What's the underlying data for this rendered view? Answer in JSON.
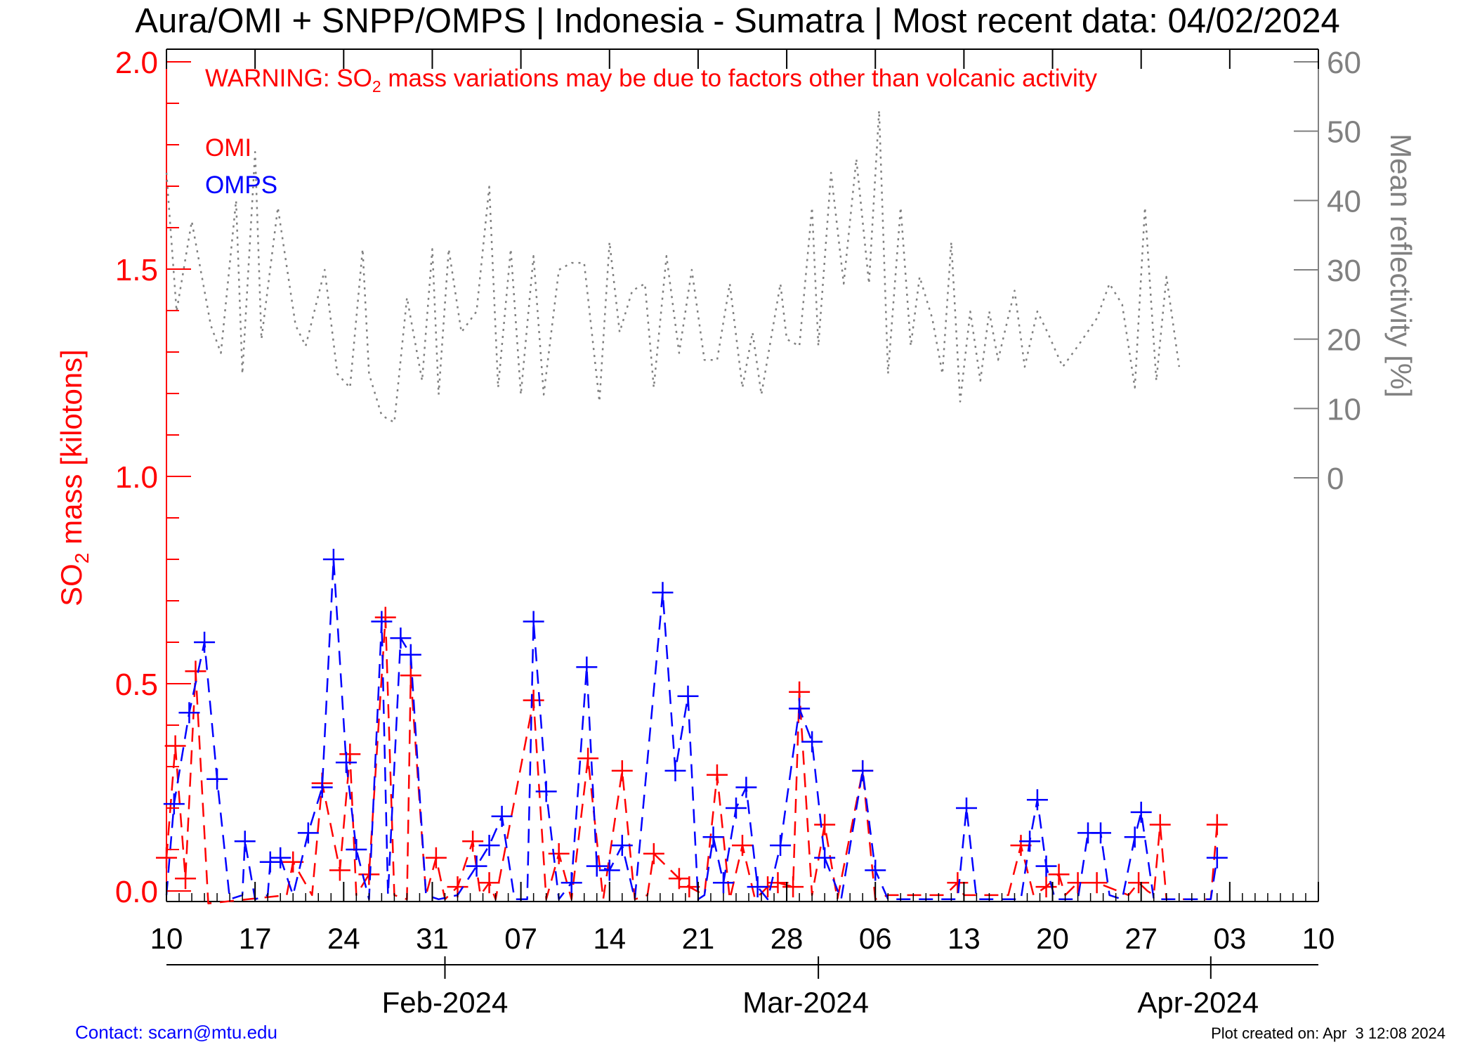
{
  "chart_data": {
    "type": "line",
    "title": "Aura/OMI + SNPP/OMPS | Indonesia - Sumatra | Most recent data: 04/02/2024",
    "warning": {
      "prefix": "WARNING: SO",
      "subscript": "2",
      "suffix": " mass variations may be due to factors other than volcanic activity"
    },
    "ylabel": {
      "prefix": "SO",
      "subscript": "2",
      "suffix": " mass [kilotons]"
    },
    "y2label": "Mean reflectivity [%]",
    "ylim": [
      0,
      2.0
    ],
    "y2lim": [
      0,
      60
    ],
    "xlim_days": [
      0,
      91
    ],
    "yticks": [
      {
        "v": 0.0,
        "label": "0.0"
      },
      {
        "v": 0.5,
        "label": "0.5"
      },
      {
        "v": 1.0,
        "label": "1.0"
      },
      {
        "v": 1.5,
        "label": "1.5"
      },
      {
        "v": 2.0,
        "label": "2.0"
      }
    ],
    "y2ticks": [
      {
        "v": 0,
        "label": "0"
      },
      {
        "v": 10,
        "label": "10"
      },
      {
        "v": 20,
        "label": "20"
      },
      {
        "v": 30,
        "label": "30"
      },
      {
        "v": 40,
        "label": "40"
      },
      {
        "v": 50,
        "label": "50"
      },
      {
        "v": 60,
        "label": "60"
      }
    ],
    "xticks": [
      {
        "d": 0,
        "label": "10"
      },
      {
        "d": 7,
        "label": "17"
      },
      {
        "d": 14,
        "label": "24"
      },
      {
        "d": 21,
        "label": "31"
      },
      {
        "d": 28,
        "label": "07"
      },
      {
        "d": 35,
        "label": "14"
      },
      {
        "d": 42,
        "label": "21"
      },
      {
        "d": 49,
        "label": "28"
      },
      {
        "d": 56,
        "label": "06"
      },
      {
        "d": 63,
        "label": "13"
      },
      {
        "d": 70,
        "label": "20"
      },
      {
        "d": 77,
        "label": "27"
      },
      {
        "d": 84,
        "label": "03"
      },
      {
        "d": 91,
        "label": "10"
      }
    ],
    "months": [
      {
        "d": 22,
        "label": "Feb-2024"
      },
      {
        "d": 50.5,
        "label": "Mar-2024"
      },
      {
        "d": 81.5,
        "label": "Apr-2024"
      }
    ],
    "legend": [
      {
        "name": "OMI",
        "color": "#ff0000"
      },
      {
        "name": "OMPS",
        "color": "#0000ff"
      }
    ],
    "colors": {
      "omi": "#ff0000",
      "omps": "#0000ff",
      "reflectivity": "#808080",
      "axis": "#000000",
      "left_axis": "#ff0000"
    },
    "series": [
      {
        "name": "OMI",
        "color": "#ff0000",
        "style": "dashed",
        "points": [
          [
            0,
            0.08
          ],
          [
            0.7,
            0.35
          ],
          [
            1.5,
            0.03
          ],
          [
            2.3,
            0.53
          ],
          [
            3.3,
            -0.03
          ],
          [
            9.5,
            -0.01
          ],
          [
            10,
            0.07
          ],
          [
            11.5,
            -0.01
          ],
          [
            12.3,
            0.26
          ],
          [
            13.7,
            0.05
          ],
          [
            14.5,
            0.33
          ],
          [
            15,
            -0.01
          ],
          [
            16,
            0.04
          ],
          [
            17.3,
            0.66
          ],
          [
            18,
            -0.01
          ],
          [
            19,
            -0.02
          ],
          [
            19.3,
            0.52
          ],
          [
            20.5,
            -0.01
          ],
          [
            21.3,
            0.08
          ],
          [
            22,
            -0.02
          ],
          [
            23,
            0.01
          ],
          [
            24.2,
            0.12
          ],
          [
            24.8,
            -0.01
          ],
          [
            25.5,
            0.02
          ],
          [
            26,
            -0.02
          ],
          [
            29,
            0.46
          ],
          [
            30,
            -0.02
          ],
          [
            31,
            0.09
          ],
          [
            32,
            -0.02
          ],
          [
            33.3,
            0.32
          ],
          [
            34.5,
            -0.02
          ],
          [
            36,
            0.29
          ],
          [
            37,
            -0.02
          ],
          [
            38,
            -0.01
          ],
          [
            38.5,
            0.09
          ],
          [
            40.5,
            0.03
          ],
          [
            41.3,
            0.01
          ],
          [
            42.5,
            -0.01
          ],
          [
            43.5,
            0.28
          ],
          [
            44.5,
            -0.02
          ],
          [
            45.5,
            0.11
          ],
          [
            46.5,
            -0.02
          ],
          [
            47.5,
            0.01
          ],
          [
            48.3,
            0.02
          ],
          [
            49.5,
            0.01
          ],
          [
            50,
            0.48
          ],
          [
            51,
            -0.01
          ],
          [
            52,
            0.16
          ],
          [
            53,
            -0.02
          ],
          [
            55,
            0.29
          ],
          [
            56,
            -0.02
          ],
          [
            57,
            -0.01
          ],
          [
            61.5,
            -0.01
          ],
          [
            62.5,
            0.02
          ],
          [
            63,
            -0.01
          ],
          [
            66.5,
            -0.01
          ],
          [
            67.5,
            0.11
          ],
          [
            68.5,
            -0.01
          ],
          [
            69.5,
            0.01
          ],
          [
            70.5,
            0.04
          ],
          [
            71,
            -0.01
          ],
          [
            72,
            0.02
          ],
          [
            73.5,
            0.02
          ],
          [
            76,
            -0.01
          ],
          [
            76.8,
            0.02
          ],
          [
            77.5,
            0.0
          ],
          [
            78,
            -0.01
          ],
          [
            78.5,
            0.16
          ],
          [
            79,
            -0.02
          ],
          [
            82.5,
            -0.02
          ],
          [
            83,
            0.16
          ]
        ]
      },
      {
        "name": "OMPS",
        "color": "#0000ff",
        "style": "dashed",
        "points": [
          [
            0,
            -0.01
          ],
          [
            0.6,
            0.21
          ],
          [
            1.8,
            0.43
          ],
          [
            3,
            0.6
          ],
          [
            4,
            0.27
          ],
          [
            5,
            -0.02
          ],
          [
            6,
            -0.01
          ],
          [
            6.2,
            0.12
          ],
          [
            7,
            -0.02
          ],
          [
            8,
            -0.01
          ],
          [
            8.2,
            0.07
          ],
          [
            9,
            0.08
          ],
          [
            10,
            -0.01
          ],
          [
            11.2,
            0.14
          ],
          [
            12.3,
            0.25
          ],
          [
            13.2,
            0.8
          ],
          [
            14.2,
            0.31
          ],
          [
            15,
            0.1
          ],
          [
            16,
            -0.02
          ],
          [
            17.5,
            -0.01
          ],
          [
            17,
            0.65
          ],
          [
            18.5,
            0.61
          ],
          [
            19.3,
            0.57
          ],
          [
            20.5,
            -0.01
          ],
          [
            21.5,
            -0.02
          ],
          [
            23,
            -0.01
          ],
          [
            24.5,
            0.06
          ],
          [
            25.5,
            0.11
          ],
          [
            26.5,
            0.18
          ],
          [
            27.5,
            -0.02
          ],
          [
            28.5,
            -0.02
          ],
          [
            29,
            0.65
          ],
          [
            30,
            0.24
          ],
          [
            31,
            -0.02
          ],
          [
            32,
            0.02
          ],
          [
            33.2,
            0.54
          ],
          [
            34,
            0.06
          ],
          [
            35,
            0.05
          ],
          [
            36,
            0.11
          ],
          [
            37,
            -0.02
          ],
          [
            39.2,
            0.72
          ],
          [
            40.2,
            0.29
          ],
          [
            41.2,
            0.47
          ],
          [
            42,
            -0.02
          ],
          [
            42.5,
            -0.01
          ],
          [
            43.2,
            0.13
          ],
          [
            44,
            0.02
          ],
          [
            45,
            0.2
          ],
          [
            45.8,
            0.25
          ],
          [
            46.7,
            0.01
          ],
          [
            47.5,
            -0.02
          ],
          [
            48.5,
            0.11
          ],
          [
            50,
            0.44
          ],
          [
            51,
            0.36
          ],
          [
            52,
            0.08
          ],
          [
            53.3,
            -0.02
          ],
          [
            55,
            0.29
          ],
          [
            56,
            0.05
          ],
          [
            57,
            -0.02
          ],
          [
            62.5,
            -0.02
          ],
          [
            63.2,
            0.2
          ],
          [
            64,
            -0.02
          ],
          [
            67.5,
            -0.02
          ],
          [
            68.2,
            0.12
          ],
          [
            68.8,
            0.22
          ],
          [
            69.5,
            0.06
          ],
          [
            70.2,
            -0.02
          ],
          [
            72,
            -0.02
          ],
          [
            72.8,
            0.14
          ],
          [
            73.8,
            0.14
          ],
          [
            74.5,
            -0.01
          ],
          [
            75.5,
            -0.02
          ],
          [
            76.5,
            0.13
          ],
          [
            77,
            0.19
          ],
          [
            78,
            -0.02
          ],
          [
            82.5,
            -0.02
          ],
          [
            83,
            0.08
          ]
        ]
      },
      {
        "name": "Mean reflectivity",
        "color": "#808080",
        "style": "dotted",
        "axis": "right",
        "points": [
          [
            0,
            44
          ],
          [
            0.8,
            24
          ],
          [
            2,
            37
          ],
          [
            3.5,
            22
          ],
          [
            4.3,
            18
          ],
          [
            5.5,
            40
          ],
          [
            6,
            15
          ],
          [
            7,
            47
          ],
          [
            7.5,
            20
          ],
          [
            8.8,
            39
          ],
          [
            10.2,
            22
          ],
          [
            11,
            19
          ],
          [
            12.5,
            30
          ],
          [
            13.5,
            15
          ],
          [
            14.5,
            13
          ],
          [
            15.5,
            33
          ],
          [
            16,
            15
          ],
          [
            17,
            9
          ],
          [
            18,
            8
          ],
          [
            19,
            26
          ],
          [
            20.2,
            14
          ],
          [
            21,
            33
          ],
          [
            21.5,
            12
          ],
          [
            22.3,
            33
          ],
          [
            23.3,
            21
          ],
          [
            24.5,
            24
          ],
          [
            25.5,
            42
          ],
          [
            26.2,
            13
          ],
          [
            27.2,
            33
          ],
          [
            28,
            12
          ],
          [
            29,
            32
          ],
          [
            29.8,
            12
          ],
          [
            31,
            30
          ],
          [
            32,
            31
          ],
          [
            33,
            31
          ],
          [
            34.2,
            11
          ],
          [
            35,
            34
          ],
          [
            35.8,
            21
          ],
          [
            36.8,
            27
          ],
          [
            37.8,
            28
          ],
          [
            38.5,
            13
          ],
          [
            39.5,
            32
          ],
          [
            40.5,
            18
          ],
          [
            41.5,
            30
          ],
          [
            42.5,
            17
          ],
          [
            43.5,
            17
          ],
          [
            44.5,
            28
          ],
          [
            45.5,
            13
          ],
          [
            46.3,
            21
          ],
          [
            47,
            12
          ],
          [
            48.5,
            28
          ],
          [
            49,
            20
          ],
          [
            50,
            19
          ],
          [
            51,
            39
          ],
          [
            51.5,
            19
          ],
          [
            52.5,
            44
          ],
          [
            53.5,
            28
          ],
          [
            54.5,
            46
          ],
          [
            55.5,
            28
          ],
          [
            56.3,
            53
          ],
          [
            57,
            15
          ],
          [
            58,
            39
          ],
          [
            58.8,
            19
          ],
          [
            59.5,
            29
          ],
          [
            60.5,
            23
          ],
          [
            61.3,
            15
          ],
          [
            62,
            34
          ],
          [
            62.7,
            11
          ],
          [
            63.5,
            24
          ],
          [
            64.3,
            14
          ],
          [
            65,
            24
          ],
          [
            65.7,
            17
          ],
          [
            67,
            27
          ],
          [
            67.8,
            16
          ],
          [
            68.8,
            24
          ],
          [
            69.6,
            21
          ],
          [
            70.8,
            16
          ],
          [
            72,
            19
          ],
          [
            73.5,
            23
          ],
          [
            74.5,
            28
          ],
          [
            75.5,
            25
          ],
          [
            76.5,
            13
          ],
          [
            77.3,
            39
          ],
          [
            78.2,
            14
          ],
          [
            79,
            29
          ],
          [
            80,
            16
          ]
        ]
      }
    ]
  },
  "footer": {
    "contact": "Contact: scarn@mtu.edu",
    "created": "Plot created on: Apr  3 12:08 2024"
  }
}
